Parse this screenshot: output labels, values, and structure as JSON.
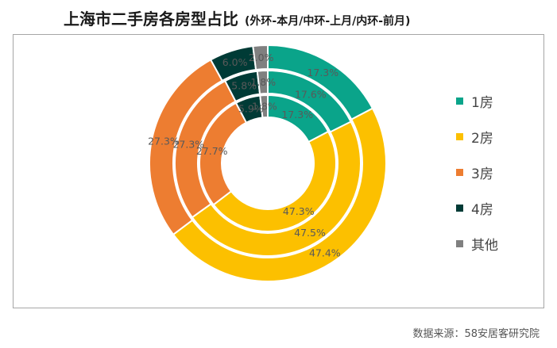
{
  "title": "上海市二手房各房型占比",
  "subtitle": "(外环-本月/中环-上月/内环-前月)",
  "source": "数据来源：58安居客研究院",
  "chart_data": {
    "type": "donut",
    "categories": [
      "1房",
      "2房",
      "3房",
      "4房",
      "其他"
    ],
    "colors": [
      "#0aa48a",
      "#fcc000",
      "#ed7d31",
      "#003b36",
      "#808080"
    ],
    "label_color": "#595959",
    "series": [
      {
        "values": [
          17.3,
          47.4,
          27.3,
          6.0,
          2.0
        ],
        "labels": [
          "17.3%",
          "47.4%",
          "27.3%",
          "6.0%",
          "2.0%"
        ]
      },
      {
        "values": [
          17.6,
          47.5,
          27.3,
          5.8,
          1.8
        ],
        "labels": [
          "17.6%",
          "47.5%",
          "27.3%",
          "5.8%",
          "1.8%"
        ]
      },
      {
        "values": [
          17.3,
          47.3,
          27.7,
          5.9,
          1.8
        ],
        "labels": [
          "17.3%",
          "47.3%",
          "27.7%",
          "5.9%",
          "1.8%"
        ]
      }
    ]
  }
}
